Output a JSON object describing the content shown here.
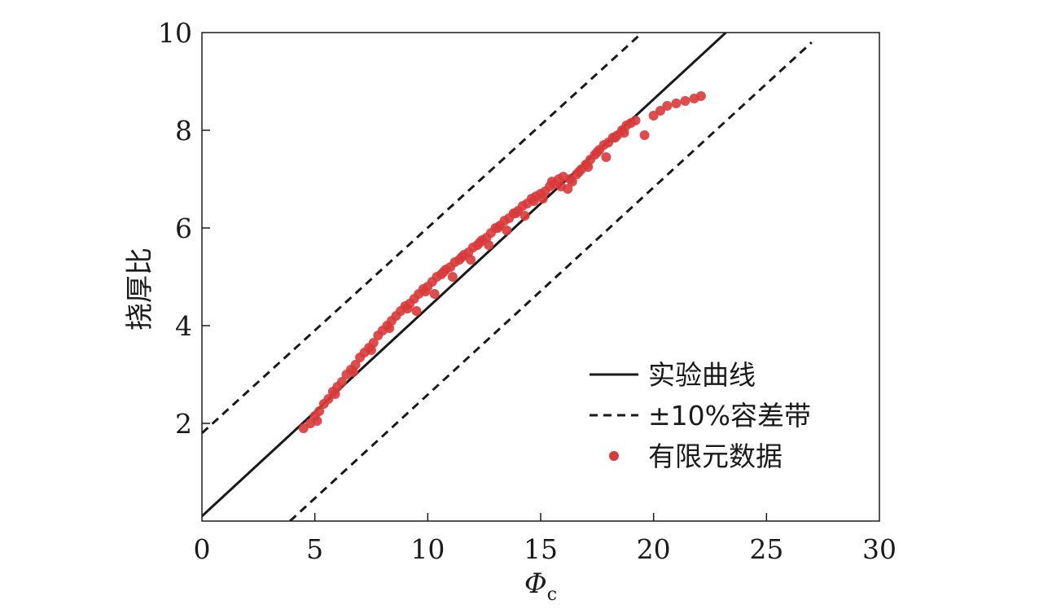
{
  "chart_data": {
    "type": "scatter",
    "xlabel": "Φ",
    "xlabel_subscript": "c",
    "ylabel": "挠厚比",
    "xlim": [
      0,
      30
    ],
    "ylim": [
      0,
      10
    ],
    "x_ticks": [
      {
        "value": 0,
        "label": "0"
      },
      {
        "value": 5,
        "label": "5"
      },
      {
        "value": 10,
        "label": "10"
      },
      {
        "value": 15,
        "label": "15"
      },
      {
        "value": 20,
        "label": "20"
      },
      {
        "value": 25,
        "label": "25"
      },
      {
        "value": 30,
        "label": "30"
      }
    ],
    "y_ticks": [
      {
        "value": 2,
        "label": "2"
      },
      {
        "value": 4,
        "label": "4"
      },
      {
        "value": 6,
        "label": "6"
      },
      {
        "value": 8,
        "label": "8"
      },
      {
        "value": 10,
        "label": "10"
      }
    ],
    "grid": false,
    "legend_position": "bottom-right",
    "series": [
      {
        "name": "实验曲线",
        "kind": "line",
        "style": "solid",
        "color": "#1a1a1a",
        "x": [
          0,
          23.2
        ],
        "y": [
          0.1,
          10
        ]
      },
      {
        "name": "±10%容差带",
        "kind": "line",
        "style": "dashed",
        "color": "#1a1a1a",
        "x": [
          0,
          19.5
        ],
        "y": [
          1.8,
          10
        ]
      },
      {
        "name": "±10%容差带",
        "kind": "line",
        "style": "dashed",
        "color": "#1a1a1a",
        "x": [
          3.9,
          27
        ],
        "y": [
          0,
          9.8
        ]
      },
      {
        "name": "有限元数据",
        "kind": "scatter",
        "color": "#d93a3a",
        "x": [
          4.5,
          4.8,
          5.0,
          5.2,
          5.4,
          5.6,
          5.8,
          6.0,
          6.2,
          6.4,
          6.6,
          6.8,
          7.0,
          7.2,
          7.4,
          7.6,
          7.8,
          8.0,
          8.2,
          8.4,
          8.6,
          8.8,
          9.0,
          9.2,
          9.4,
          9.6,
          9.8,
          10.0,
          10.2,
          10.4,
          10.6,
          10.8,
          11.0,
          11.2,
          11.4,
          11.6,
          11.8,
          12.0,
          12.2,
          12.4,
          12.6,
          12.8,
          13.0,
          13.2,
          13.4,
          13.6,
          13.8,
          14.0,
          14.2,
          14.4,
          14.6,
          14.8,
          15.0,
          15.2,
          15.4,
          15.6,
          15.8,
          16.0,
          16.2,
          16.4,
          16.6,
          16.8,
          17.0,
          17.2,
          17.4,
          17.6,
          17.8,
          18.0,
          18.2,
          18.4,
          18.6,
          18.8,
          19.0,
          19.2,
          19.6,
          20.0,
          20.3,
          20.6,
          21.0,
          21.4,
          21.8,
          22.1,
          5.1,
          5.9,
          6.7,
          7.5,
          8.3,
          9.1,
          9.9,
          10.7,
          11.5,
          12.3,
          13.1,
          13.9,
          14.7,
          15.5,
          16.3,
          17.1,
          17.9,
          18.7,
          9.5,
          10.3,
          11.1,
          11.9,
          12.7,
          13.5,
          14.3,
          15.1,
          15.9,
          16.7,
          17.5,
          18.3
        ],
        "y": [
          1.9,
          2.0,
          2.15,
          2.25,
          2.4,
          2.5,
          2.65,
          2.75,
          2.85,
          3.0,
          3.1,
          3.2,
          3.35,
          3.45,
          3.55,
          3.65,
          3.8,
          3.9,
          4.0,
          4.1,
          4.2,
          4.3,
          4.4,
          4.45,
          4.55,
          4.65,
          4.75,
          4.8,
          4.9,
          5.0,
          5.05,
          5.15,
          5.2,
          5.3,
          5.35,
          5.45,
          5.5,
          5.6,
          5.65,
          5.75,
          5.8,
          5.9,
          6.0,
          6.05,
          6.15,
          6.2,
          6.3,
          6.35,
          6.45,
          6.5,
          6.6,
          6.65,
          6.7,
          6.75,
          6.85,
          6.9,
          7.0,
          7.05,
          6.8,
          6.95,
          7.1,
          7.2,
          7.3,
          7.4,
          7.5,
          7.6,
          7.7,
          7.75,
          7.85,
          7.9,
          8.0,
          8.1,
          8.15,
          8.2,
          7.9,
          8.3,
          8.4,
          8.5,
          8.55,
          8.6,
          8.65,
          8.7,
          2.05,
          2.6,
          3.05,
          3.5,
          3.95,
          4.35,
          4.7,
          5.1,
          5.4,
          5.7,
          6.0,
          6.3,
          6.55,
          6.95,
          7.0,
          7.25,
          7.45,
          7.95,
          4.3,
          4.65,
          5.0,
          5.35,
          5.65,
          5.95,
          6.25,
          6.6,
          6.85,
          7.15,
          7.55,
          7.85
        ]
      }
    ]
  }
}
